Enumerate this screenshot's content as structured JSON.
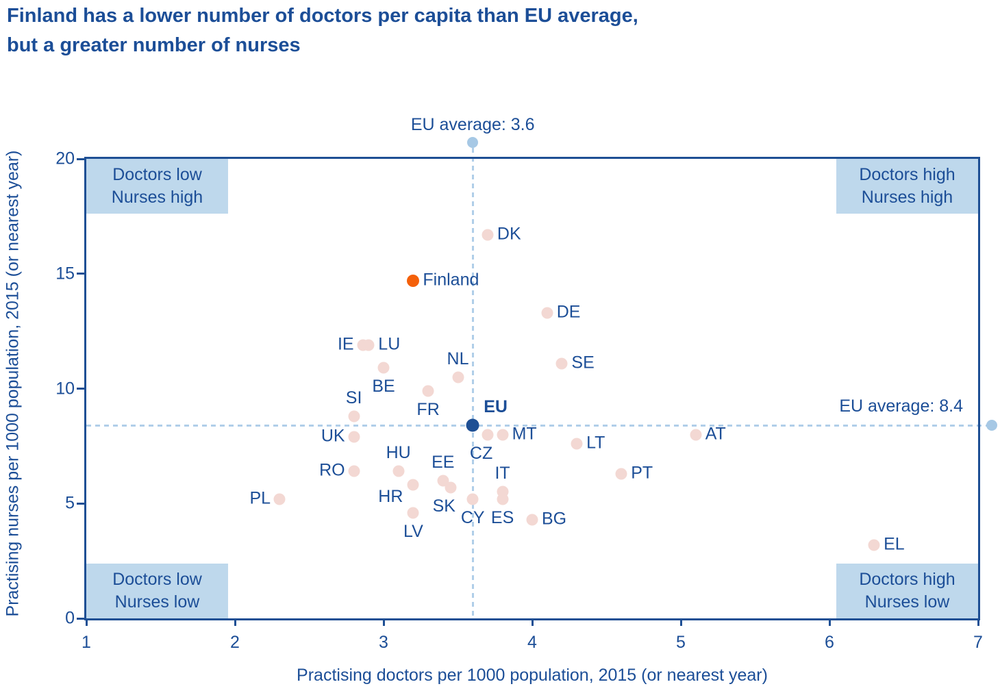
{
  "title": {
    "line1": "Finland has a lower number of doctors per capita than EU average,",
    "line2": "but a greater number of nurses"
  },
  "colors": {
    "title_blue": "#1C4E97",
    "label_blue": "#1C4E97",
    "axis_blue": "#1E4F94",
    "quadrant_box_blue": "#BED8EC",
    "dashed_line_blue": "#B0CEE9",
    "marker_dot_blue": "#A6C8E5",
    "country_dot_pink": "#F3D8D3",
    "finland_orange": "#F4600A",
    "eu_dot_navy": "#1E4F94"
  },
  "chart_data": {
    "type": "scatter",
    "xlabel": "Practising doctors per 1000 population, 2015 (or nearest year)",
    "ylabel": "Practising nurses per 1000 population, 2015 (or nearest year)",
    "xlim": [
      1,
      7
    ],
    "ylim": [
      0,
      20
    ],
    "x_ticks": [
      1,
      2,
      3,
      4,
      5,
      6,
      7
    ],
    "y_ticks": [
      0,
      5,
      10,
      15,
      20
    ],
    "grid": false,
    "eu_average_doctors": {
      "label": "EU average: 3.6",
      "value": 3.6
    },
    "eu_average_nurses": {
      "label": "EU average: 8.4",
      "value": 8.4
    },
    "quadrant_labels": [
      {
        "position": "top-left",
        "line1": "Doctors low",
        "line2": "Nurses high"
      },
      {
        "position": "top-right",
        "line1": "Doctors high",
        "line2": "Nurses high"
      },
      {
        "position": "bottom-left",
        "line1": "Doctors low",
        "line2": "Nurses low"
      },
      {
        "position": "bottom-right",
        "line1": "Doctors high",
        "line2": "Nurses low"
      }
    ],
    "points": [
      {
        "label": "PL",
        "doctors": 2.3,
        "nurses": 5.2,
        "type": "country",
        "label_pos": "left"
      },
      {
        "label": "RO",
        "doctors": 2.8,
        "nurses": 6.4,
        "type": "country",
        "label_pos": "left"
      },
      {
        "label": "UK",
        "doctors": 2.8,
        "nurses": 7.9,
        "type": "country",
        "label_pos": "left"
      },
      {
        "label": "SI",
        "doctors": 2.8,
        "nurses": 8.8,
        "type": "country",
        "label_pos": "above"
      },
      {
        "label": "IE",
        "doctors": 2.86,
        "nurses": 11.9,
        "type": "country",
        "label_pos": "left"
      },
      {
        "label": "LU",
        "doctors": 2.9,
        "nurses": 11.9,
        "type": "country",
        "label_pos": "right"
      },
      {
        "label": "BE",
        "doctors": 3.0,
        "nurses": 10.9,
        "type": "country",
        "label_pos": "below"
      },
      {
        "label": "HU",
        "doctors": 3.1,
        "nurses": 6.4,
        "type": "country",
        "label_pos": "above"
      },
      {
        "label": "LV",
        "doctors": 3.2,
        "nurses": 4.6,
        "type": "country",
        "label_pos": "below"
      },
      {
        "label": "HR",
        "doctors": 3.2,
        "nurses": 5.8,
        "type": "country",
        "label_pos": "left-below"
      },
      {
        "label": "Finland",
        "doctors": 3.2,
        "nurses": 14.7,
        "type": "highlight",
        "label_pos": "right"
      },
      {
        "label": "FR",
        "doctors": 3.3,
        "nurses": 9.9,
        "type": "country",
        "label_pos": "below"
      },
      {
        "label": "EE",
        "doctors": 3.4,
        "nurses": 6.0,
        "type": "country",
        "label_pos": "above"
      },
      {
        "label": "SK",
        "doctors": 3.45,
        "nurses": 5.7,
        "type": "country",
        "label_pos": "below-left"
      },
      {
        "label": "NL",
        "doctors": 3.5,
        "nurses": 10.5,
        "type": "country",
        "label_pos": "above"
      },
      {
        "label": "CY",
        "doctors": 3.6,
        "nurses": 5.2,
        "type": "country",
        "label_pos": "below"
      },
      {
        "label": "EU",
        "doctors": 3.6,
        "nurses": 8.4,
        "type": "eu",
        "label_pos": "above-right"
      },
      {
        "label": "CZ",
        "doctors": 3.7,
        "nurses": 8.0,
        "type": "country",
        "label_pos": "below-left"
      },
      {
        "label": "DK",
        "doctors": 3.7,
        "nurses": 16.7,
        "type": "country",
        "label_pos": "right"
      },
      {
        "label": "ES",
        "doctors": 3.8,
        "nurses": 5.2,
        "type": "country",
        "label_pos": "below"
      },
      {
        "label": "IT",
        "doctors": 3.8,
        "nurses": 5.5,
        "type": "country",
        "label_pos": "above"
      },
      {
        "label": "MT",
        "doctors": 3.8,
        "nurses": 8.0,
        "type": "country",
        "label_pos": "right"
      },
      {
        "label": "BG",
        "doctors": 4.0,
        "nurses": 4.3,
        "type": "country",
        "label_pos": "right"
      },
      {
        "label": "DE",
        "doctors": 4.1,
        "nurses": 13.3,
        "type": "country",
        "label_pos": "right"
      },
      {
        "label": "SE",
        "doctors": 4.2,
        "nurses": 11.1,
        "type": "country",
        "label_pos": "right"
      },
      {
        "label": "LT",
        "doctors": 4.3,
        "nurses": 7.6,
        "type": "country",
        "label_pos": "right"
      },
      {
        "label": "PT",
        "doctors": 4.6,
        "nurses": 6.3,
        "type": "country",
        "label_pos": "right"
      },
      {
        "label": "AT",
        "doctors": 5.1,
        "nurses": 8.0,
        "type": "country",
        "label_pos": "right"
      },
      {
        "label": "EL",
        "doctors": 6.3,
        "nurses": 3.2,
        "type": "country",
        "label_pos": "right"
      }
    ]
  }
}
